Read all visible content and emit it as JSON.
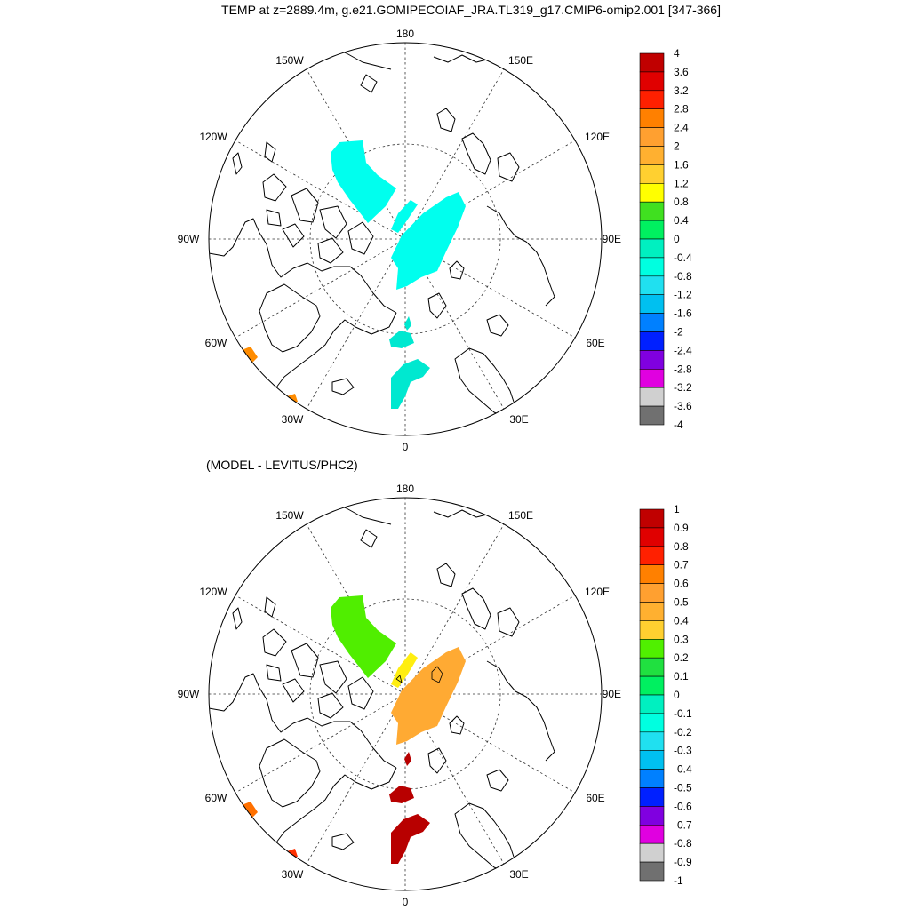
{
  "title": "TEMP at z=2889.4m, g.e21.GOMIPECOIAF_JRA.TL319_g17.CMIP6-omip2.001 [347-366]",
  "diff_title": "(MODEL - LEVITUS/PHC2)",
  "longitude_labels": {
    "lon180": "180",
    "lon150w": "150W",
    "lon150e": "150E",
    "lon120w": "120W",
    "lon120e": "120E",
    "lon90w": "90W",
    "lon90e": "90E",
    "lon60w": "60W",
    "lon60e": "60E",
    "lon30w": "30W",
    "lon30e": "30E",
    "lon0": "0"
  },
  "colorbars": {
    "top": {
      "labels": [
        "4",
        "3.6",
        "3.2",
        "2.8",
        "2.4",
        "2",
        "1.6",
        "1.2",
        "0.8",
        "0.4",
        "0",
        "-0.4",
        "-0.8",
        "-1.2",
        "-1.6",
        "-2",
        "-2.4",
        "-2.8",
        "-3.2",
        "-3.6",
        "-4"
      ],
      "colors": [
        "#c00000",
        "#e00000",
        "#ff2000",
        "#ff8000",
        "#ffa030",
        "#ffb030",
        "#ffd030",
        "#ffff00",
        "#40e020",
        "#00f060",
        "#00f0c0",
        "#00ffe0",
        "#20e0f0",
        "#00c0f0",
        "#0080ff",
        "#0020ff",
        "#8000e0",
        "#e000e0",
        "#d0d0d0",
        "#707070"
      ]
    },
    "bottom": {
      "labels": [
        "1",
        "0.9",
        "0.8",
        "0.7",
        "0.6",
        "0.5",
        "0.4",
        "0.3",
        "0.2",
        "0.1",
        "0",
        "-0.1",
        "-0.2",
        "-0.3",
        "-0.4",
        "-0.5",
        "-0.6",
        "-0.7",
        "-0.8",
        "-0.9",
        "-1"
      ],
      "colors": [
        "#c00000",
        "#e00000",
        "#ff2000",
        "#ff8000",
        "#ffa030",
        "#ffb030",
        "#ffd030",
        "#50f000",
        "#20e040",
        "#00f060",
        "#00f0c0",
        "#00ffe0",
        "#20e0f0",
        "#00c0f0",
        "#0080ff",
        "#0020ff",
        "#8000e0",
        "#e000e0",
        "#d0d0d0",
        "#707070"
      ]
    }
  }
}
